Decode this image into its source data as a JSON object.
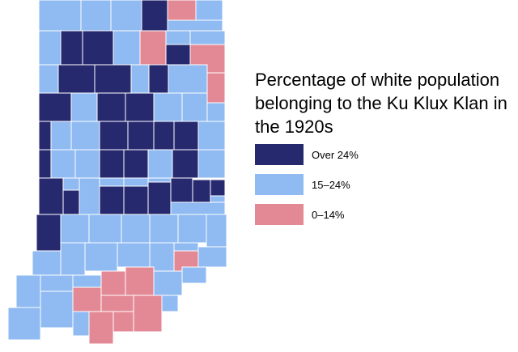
{
  "title": "Percentage of white population belonging to the Ku Klux Klan in the 1920s",
  "legend": [
    {
      "label": "Over 24%",
      "color": "#27296f"
    },
    {
      "label": "15–24%",
      "color": "#8fbaf2"
    },
    {
      "label": "0–14%",
      "color": "#e38996"
    }
  ]
}
